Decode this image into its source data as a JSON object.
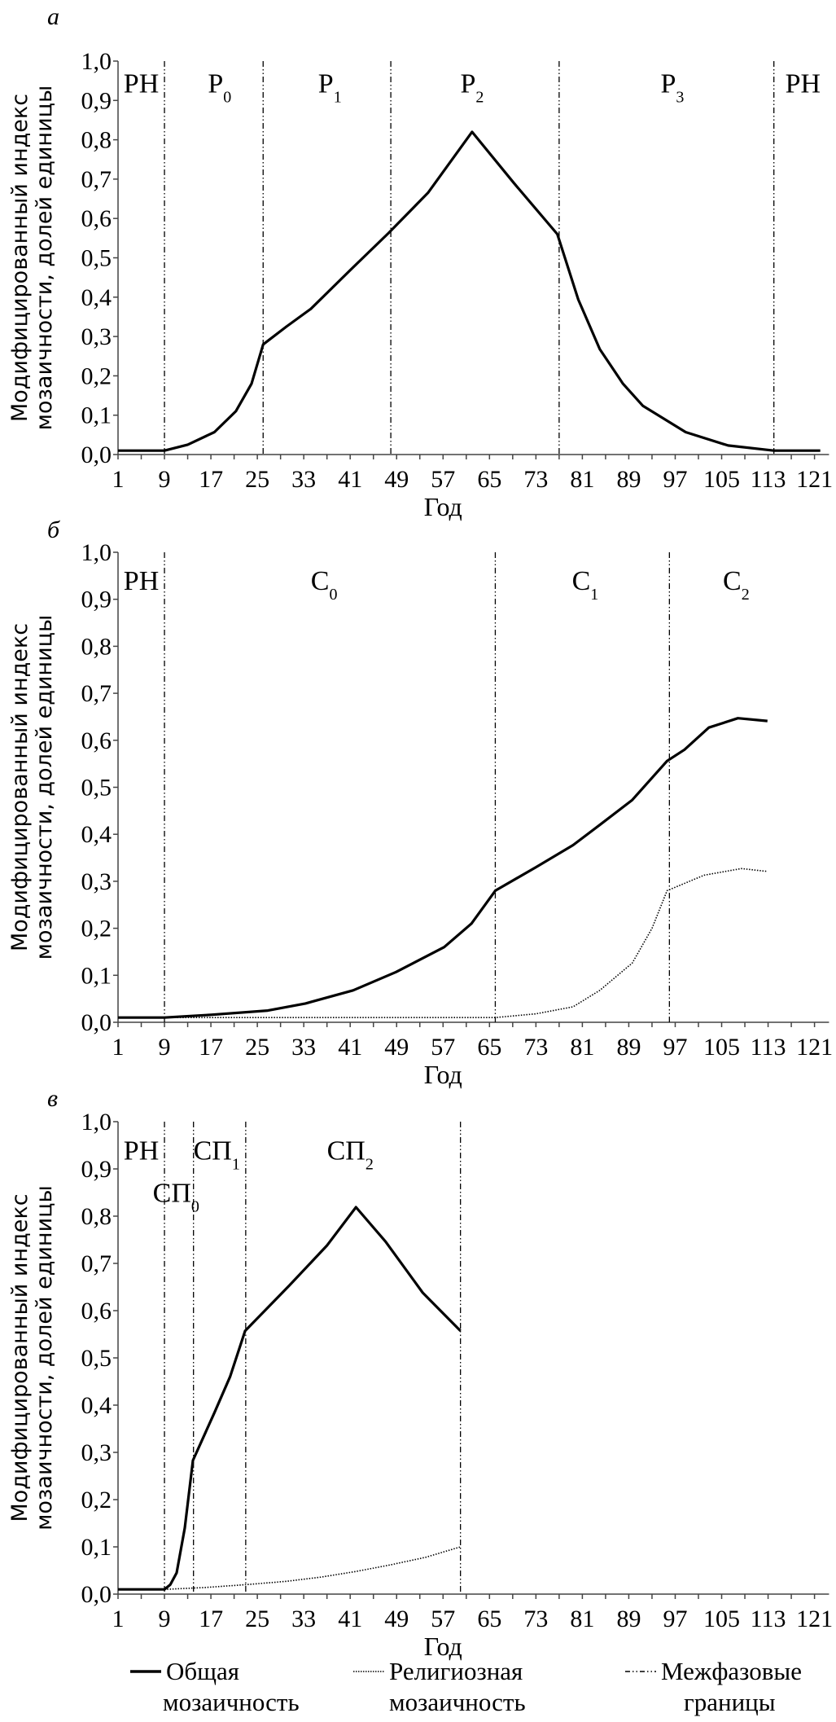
{
  "legend": {
    "general": [
      "Общая",
      "мозаичность"
    ],
    "religious": [
      "Религиозная",
      "мозаичность"
    ],
    "boundaries": [
      "Межфазовые",
      "границы"
    ]
  },
  "chart_data": [
    {
      "type": "line",
      "panel_letter": "а",
      "ylabel": [
        "Модифицированный индекс",
        "мозаичности, долей единицы"
      ],
      "xlabel": "Год",
      "xlim": [
        1,
        123
      ],
      "ylim": [
        0,
        1
      ],
      "xticks": [
        "1",
        "9",
        "17",
        "25",
        "33",
        "41",
        "49",
        "57",
        "65",
        "73",
        "81",
        "89",
        "97",
        "105",
        "113",
        "121"
      ],
      "yticks": [
        "0,0",
        "0,1",
        "0,2",
        "0,3",
        "0,4",
        "0,5",
        "0,6",
        "0,7",
        "0,8",
        "0,9",
        "1,0"
      ],
      "boundaries": [
        9,
        26,
        48,
        77,
        114
      ],
      "phases": [
        {
          "label": "PH",
          "sub": "",
          "x": 5,
          "y": 0.92
        },
        {
          "label": "P",
          "sub": "0",
          "x": 18.5,
          "y": 0.92
        },
        {
          "label": "P",
          "sub": "1",
          "x": 37.5,
          "y": 0.92
        },
        {
          "label": "P",
          "sub": "2",
          "x": 62,
          "y": 0.92
        },
        {
          "label": "P",
          "sub": "3",
          "x": 96.5,
          "y": 0.92
        },
        {
          "label": "PH",
          "sub": "",
          "x": 119,
          "y": 0.92
        }
      ],
      "series": [
        {
          "name": "general",
          "style": "solid",
          "x": [
            1,
            9,
            13,
            17.6,
            21.3,
            24,
            26,
            30,
            34.2,
            41.1,
            47.6,
            54.4,
            62,
            69.2,
            76.7,
            80.3,
            84,
            88,
            91.4,
            98.8,
            106.1,
            114,
            122
          ],
          "y": [
            0.01,
            0.01,
            0.025,
            0.057,
            0.11,
            0.18,
            0.28,
            0.325,
            0.37,
            0.47,
            0.563,
            0.665,
            0.82,
            0.69,
            0.56,
            0.394,
            0.268,
            0.18,
            0.124,
            0.057,
            0.023,
            0.01,
            0.01
          ]
        }
      ]
    },
    {
      "type": "line",
      "panel_letter": "б",
      "ylabel": [
        "Модифицированный индекс",
        "мозаичности, долей единицы"
      ],
      "xlabel": "Год",
      "xlim": [
        1,
        123
      ],
      "ylim": [
        0,
        1
      ],
      "xticks": [
        "1",
        "9",
        "17",
        "25",
        "33",
        "41",
        "49",
        "57",
        "65",
        "73",
        "81",
        "89",
        "97",
        "105",
        "113",
        "121"
      ],
      "yticks": [
        "0,0",
        "0,1",
        "0,2",
        "0,3",
        "0,4",
        "0,5",
        "0,6",
        "0,7",
        "0,8",
        "0,9",
        "1,0"
      ],
      "boundaries": [
        9,
        66,
        96
      ],
      "phases": [
        {
          "label": "PH",
          "sub": "",
          "x": 5,
          "y": 0.92
        },
        {
          "label": "C",
          "sub": "0",
          "x": 36.5,
          "y": 0.92
        },
        {
          "label": "C",
          "sub": "1",
          "x": 81.5,
          "y": 0.92
        },
        {
          "label": "C",
          "sub": "2",
          "x": 107.5,
          "y": 0.92
        }
      ],
      "series": [
        {
          "name": "general",
          "style": "solid",
          "x": [
            1,
            9,
            17,
            26.8,
            33.3,
            41.5,
            48.9,
            57.2,
            61.9,
            66,
            73,
            79.4,
            84,
            89.6,
            95.6,
            98.6,
            102.8,
            107.8,
            112.9
          ],
          "y": [
            0.01,
            0.01,
            0.016,
            0.025,
            0.04,
            0.068,
            0.107,
            0.16,
            0.21,
            0.28,
            0.33,
            0.377,
            0.42,
            0.473,
            0.556,
            0.58,
            0.627,
            0.647,
            0.641
          ]
        },
        {
          "name": "religious",
          "style": "dotted",
          "x": [
            1,
            66,
            73,
            79.4,
            84,
            89.6,
            93,
            95.6,
            102,
            108.4,
            112.9
          ],
          "y": [
            0.01,
            0.01,
            0.018,
            0.033,
            0.068,
            0.126,
            0.2,
            0.28,
            0.313,
            0.327,
            0.321
          ]
        }
      ]
    },
    {
      "type": "line",
      "panel_letter": "в",
      "ylabel": [
        "Модифицированный индекс",
        "мозаичности, долей единицы"
      ],
      "xlabel": "Год",
      "xlim": [
        1,
        123
      ],
      "ylim": [
        0,
        1
      ],
      "xticks": [
        "1",
        "9",
        "17",
        "25",
        "33",
        "41",
        "49",
        "57",
        "65",
        "73",
        "81",
        "89",
        "97",
        "105",
        "113",
        "121"
      ],
      "yticks": [
        "0,0",
        "0,1",
        "0,2",
        "0,3",
        "0,4",
        "0,5",
        "0,6",
        "0,7",
        "0,8",
        "0,9",
        "1,0"
      ],
      "boundaries": [
        9,
        14,
        23,
        60
      ],
      "phases": [
        {
          "label": "PH",
          "sub": "",
          "x": 5,
          "y": 0.92
        },
        {
          "label": "СП",
          "sub": "0",
          "x": 11,
          "y": 0.83
        },
        {
          "label": "СП",
          "sub": "1",
          "x": 18,
          "y": 0.92
        },
        {
          "label": "СП",
          "sub": "2",
          "x": 41,
          "y": 0.92
        }
      ],
      "series": [
        {
          "name": "general",
          "style": "solid",
          "x": [
            1,
            9,
            10,
            11.1,
            12.5,
            13.9,
            17.6,
            20.3,
            22.9,
            30.5,
            37,
            42,
            47.1,
            53.5,
            60
          ],
          "y": [
            0.01,
            0.01,
            0.02,
            0.045,
            0.14,
            0.283,
            0.384,
            0.46,
            0.557,
            0.653,
            0.738,
            0.819,
            0.746,
            0.638,
            0.557
          ]
        },
        {
          "name": "religious",
          "style": "dotted",
          "x": [
            9,
            16,
            23,
            30,
            36,
            42,
            48,
            54,
            60
          ],
          "y": [
            0.01,
            0.014,
            0.02,
            0.027,
            0.036,
            0.048,
            0.062,
            0.078,
            0.1
          ]
        }
      ]
    }
  ]
}
